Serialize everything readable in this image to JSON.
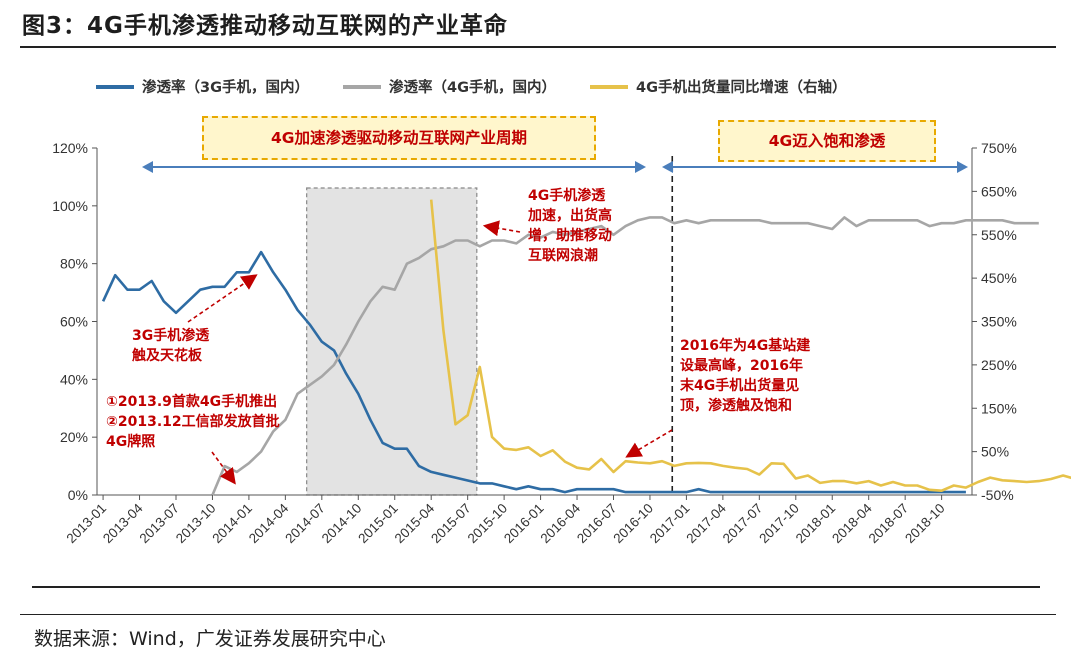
{
  "title": "图3：4G手机渗透推动移动互联网的产业革命",
  "source": "数据来源：Wind，广发证券发展研究中心",
  "legend": {
    "s3g": "渗透率（3G手机，国内）",
    "s4g": "渗透率（4G手机，国内）",
    "ship": "4G手机出货量同比增速（右轴）"
  },
  "boxes": {
    "left": "4G加速渗透驱动移动互联网产业周期",
    "right": "4G迈入饱和渗透"
  },
  "annotations": {
    "a1_l1": "4G手机渗透",
    "a1_l2": "加速，出货高",
    "a1_l3": "增，助推移动",
    "a1_l4": "互联网浪潮",
    "a2_l1": "3G手机渗透",
    "a2_l2": "触及天花板",
    "a3_l1": "①2013.9首款4G手机推出",
    "a3_l2": "②2013.12工信部发放首批",
    "a3_l3": "4G牌照",
    "a4_l1": "2016年为4G基站建",
    "a4_l2": "设最高峰，2016年",
    "a4_l3": "末4G手机出货量见",
    "a4_l4": "顶，渗透触及饱和"
  },
  "colors": {
    "s3g": "#2e6ca4",
    "s4g": "#a6a6a6",
    "ship": "#e6c24a",
    "accent": "#c00000",
    "arrow": "#4a7ebb"
  },
  "chart_data": {
    "type": "line",
    "x_start": "2013-01",
    "x_ticks": [
      "2013-01",
      "2013-04",
      "2013-07",
      "2013-10",
      "2014-01",
      "2014-04",
      "2014-07",
      "2014-10",
      "2015-01",
      "2015-04",
      "2015-07",
      "2015-10",
      "2016-01",
      "2016-04",
      "2016-07",
      "2016-10",
      "2017-01",
      "2017-04",
      "2017-07",
      "2017-10",
      "2018-01",
      "2018-04",
      "2018-07",
      "2018-10"
    ],
    "y_left": {
      "min": 0,
      "max": 120,
      "ticks": [
        "0%",
        "20%",
        "40%",
        "60%",
        "80%",
        "100%",
        "120%"
      ]
    },
    "y_right": {
      "min": -50,
      "max": 750,
      "ticks": [
        "-50%",
        "50%",
        "150%",
        "250%",
        "350%",
        "450%",
        "550%",
        "650%",
        "750%"
      ]
    },
    "shaded_period": [
      "2014-06",
      "2015-08"
    ],
    "divider": "2016-12",
    "series": [
      {
        "name": "渗透率（3G手机，国内）",
        "axis": "left",
        "start": "2013-01",
        "values": [
          67,
          76,
          71,
          71,
          74,
          67,
          63,
          67,
          71,
          72,
          72,
          77,
          77,
          84,
          77,
          71,
          64,
          59,
          53,
          50,
          42,
          35,
          26,
          18,
          16,
          16,
          10,
          8,
          7,
          6,
          5,
          4,
          4,
          3,
          2,
          3,
          2,
          2,
          1,
          2,
          2,
          2,
          2,
          1,
          1,
          1,
          1,
          1,
          1,
          2,
          1,
          1,
          1,
          1,
          1,
          1,
          1,
          1,
          1,
          1,
          1,
          1,
          1,
          1,
          1,
          1,
          1,
          1,
          1,
          1,
          1,
          1
        ]
      },
      {
        "name": "渗透率（4G手机，国内）",
        "axis": "left",
        "start": "2013-10",
        "values": [
          0,
          10,
          8,
          11,
          15,
          22,
          26,
          35,
          38,
          41,
          45,
          52,
          60,
          67,
          72,
          71,
          80,
          82,
          85,
          86,
          88,
          88,
          86,
          88,
          88,
          87,
          90,
          89,
          91,
          90,
          91,
          92,
          93,
          90,
          93,
          95,
          96,
          96,
          94,
          95,
          94,
          95,
          95,
          95,
          95,
          95,
          94,
          94,
          94,
          94,
          93,
          92,
          96,
          93,
          95,
          95,
          95,
          95,
          95,
          93,
          94,
          94,
          95,
          95,
          95,
          95,
          94,
          94,
          94
        ]
      },
      {
        "name": "4G手机出货量同比增速（右轴）",
        "axis": "right",
        "start": "2015-04",
        "values": [
          631,
          330,
          113,
          134,
          245,
          84,
          57,
          54,
          60,
          40,
          53,
          27,
          13,
          9,
          33,
          3,
          28,
          25,
          23,
          28,
          17,
          23,
          24,
          23,
          17,
          13,
          10,
          -3,
          23,
          22,
          -12,
          -5,
          -22,
          -18,
          -18,
          -23,
          -18,
          -28,
          -20,
          -28,
          -28,
          -38,
          -40,
          -28,
          -33,
          -20,
          -10,
          -16,
          -18,
          -20,
          -18,
          -13,
          -5,
          -13,
          -28,
          -28
        ]
      }
    ]
  }
}
